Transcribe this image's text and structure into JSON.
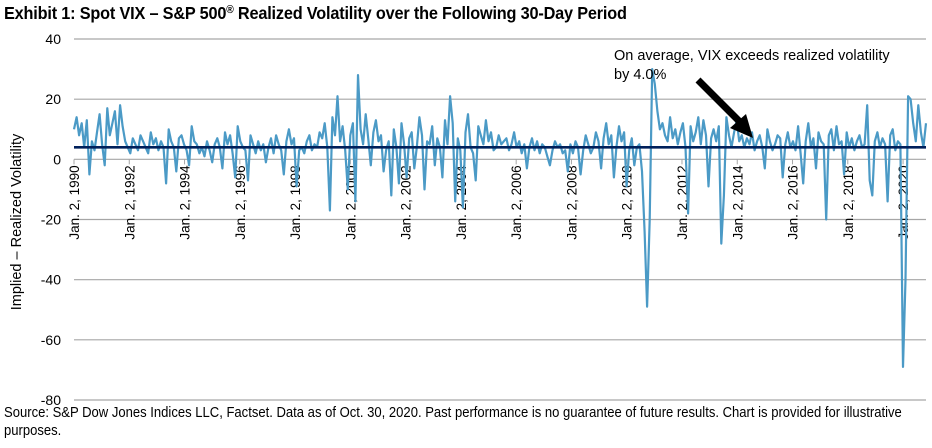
{
  "chart_data": {
    "type": "line",
    "title_main": "Exhibit 1: Spot VIX – S&P 500",
    "title_reg": "®",
    "title_rest": " Realized Volatility over the Following 30-Day Period",
    "xlabel": "",
    "ylabel": "Implied – Realized Volatility",
    "ylim": [
      -80,
      40
    ],
    "yticks": [
      40,
      20,
      0,
      -20,
      -40,
      -60,
      -80
    ],
    "ytick_labels": [
      "40",
      "20",
      "0",
      "-20",
      "-40",
      "-60",
      "-80"
    ],
    "xlim": [
      1990.0,
      2020.83
    ],
    "xticks": [
      1990,
      1992,
      1994,
      1996,
      1998,
      2000,
      2002,
      2004,
      2006,
      2008,
      2010,
      2012,
      2014,
      2016,
      2018,
      2020
    ],
    "xtick_labels": [
      "Jan. 2, 1990",
      "Jan. 2, 1992",
      "Jan. 2, 1994",
      "Jan. 2, 1996",
      "Jan. 2, 1998",
      "Jan. 2, 2000",
      "Jan. 2, 2002",
      "Jan. 2, 2004",
      "Jan. 2, 2006",
      "Jan. 2, 2008",
      "Jan. 2, 2010",
      "Jan. 2, 2012",
      "Jan. 2, 2014",
      "Jan. 2, 2016",
      "Jan. 2, 2018",
      "Jan. 2, 2020"
    ],
    "grid": "horizontal",
    "legend": "none",
    "series": [
      {
        "name": "Spot VIX – S&P 500 Realized Volatility over the Following 30-Day Period",
        "color": "#4b9ac6",
        "x_start": 1990.0,
        "x_step_years": 0.0833,
        "values": [
          10,
          14,
          8,
          12,
          4,
          13,
          -5,
          6,
          3,
          9,
          15,
          5,
          -2,
          17,
          8,
          12,
          16,
          5,
          18,
          11,
          6,
          4,
          2,
          7,
          5,
          3,
          8,
          6,
          4,
          2,
          9,
          5,
          7,
          3,
          6,
          4,
          -8,
          10,
          6,
          4,
          -4,
          7,
          8,
          5,
          3,
          -2,
          11,
          6,
          5,
          2,
          4,
          1,
          6,
          3,
          -1,
          5,
          7,
          4,
          -3,
          9,
          5,
          8,
          2,
          -6,
          11,
          6,
          4,
          3,
          -7,
          8,
          5,
          2,
          6,
          3,
          5,
          -1,
          4,
          7,
          2,
          8,
          5,
          3,
          -5,
          6,
          10,
          5,
          7,
          -9,
          3,
          4,
          2,
          6,
          8,
          3,
          5,
          4,
          9,
          7,
          12,
          4,
          -17,
          14,
          8,
          21,
          6,
          11,
          3,
          -10,
          8,
          12,
          -14,
          28,
          10,
          5,
          15,
          7,
          -2,
          9,
          13,
          6,
          8,
          -4,
          3,
          6,
          -12,
          10,
          4,
          -8,
          12,
          5,
          -6,
          7,
          9,
          -3,
          4,
          14,
          8,
          -10,
          6,
          5,
          11,
          -2,
          7,
          4,
          -6,
          13,
          5,
          21,
          12,
          -14,
          7,
          3,
          -16,
          9,
          15,
          4,
          2,
          -7,
          11,
          8,
          5,
          13,
          6,
          9,
          3,
          4,
          8,
          5,
          6,
          7,
          3,
          5,
          9,
          4,
          6,
          2,
          5,
          -3,
          4,
          7,
          3,
          6,
          2,
          5,
          4,
          1,
          -2,
          3,
          6,
          4,
          5,
          2,
          3,
          -4,
          5,
          2,
          6,
          4,
          -5,
          3,
          8,
          5,
          2,
          4,
          9,
          6,
          -3,
          7,
          12,
          5,
          8,
          -6,
          4,
          11,
          6,
          9,
          -9,
          3,
          7,
          -2,
          4,
          5,
          -4,
          -24,
          -49,
          -20,
          30,
          25,
          16,
          10,
          12,
          8,
          6,
          14,
          7,
          10,
          5,
          9,
          12,
          4,
          -18,
          11,
          6,
          9,
          14,
          5,
          13,
          8,
          -9,
          7,
          10,
          6,
          11,
          -28,
          -12,
          14,
          8,
          4,
          9,
          13,
          6,
          8,
          4,
          7,
          5,
          9,
          3,
          6,
          8,
          4,
          -3,
          10,
          6,
          3,
          5,
          8,
          7,
          -6,
          5,
          9,
          4,
          6,
          3,
          11,
          2,
          -8,
          6,
          12,
          4,
          7,
          -3,
          9,
          6,
          5,
          -20,
          8,
          10,
          3,
          11,
          5,
          6,
          -5,
          9,
          4,
          7,
          3,
          6,
          8,
          4,
          5,
          18,
          -7,
          -12,
          6,
          9,
          4,
          7,
          5,
          -14,
          8,
          10,
          3,
          6,
          5,
          -69,
          -40,
          21,
          20,
          12,
          6,
          18,
          9,
          4,
          12
        ]
      },
      {
        "name": "Average",
        "color": "#00205b",
        "value": 4.0
      }
    ],
    "annotation": {
      "line1": "On average, VIX exceeds realized volatility",
      "line2": "by 4.0%",
      "arrow": "pointing to average line"
    }
  },
  "footer": {
    "source": "Source: S&P Dow Jones Indices LLC, Factset. Data as of Oct. 30, 2020. Past performance is no guarantee of future results. Chart is provided for illustrative purposes."
  }
}
